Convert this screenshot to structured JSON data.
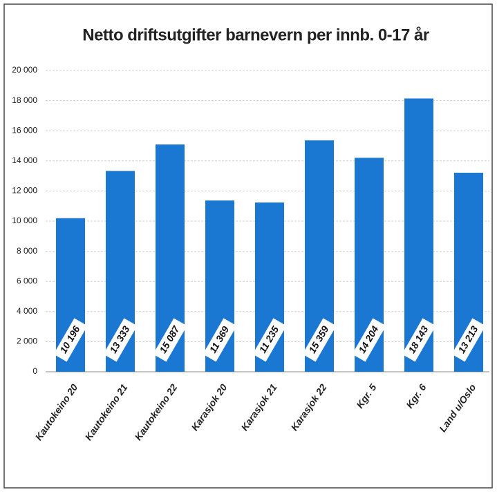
{
  "chart_data": {
    "type": "bar",
    "title": "Netto driftsutgifter barnevern per innb. 0-17 år",
    "categories": [
      "Kautokeino 20",
      "Kautokeino 21",
      "Kautokeino 22",
      "Karasjok 20",
      "Karasjok 21",
      "Karasjok 22",
      "Kgr. 5",
      "Kgr. 6",
      "Land u/Oslo"
    ],
    "values": [
      10196,
      13333,
      15087,
      11369,
      11235,
      15359,
      14204,
      18143,
      13213
    ],
    "value_labels": [
      "10 196",
      "13 333",
      "15 087",
      "11 369",
      "11 235",
      "15 359",
      "14 204",
      "18 143",
      "13 213"
    ],
    "color": "#1b78d2",
    "ylim": [
      0,
      20000
    ],
    "yticks": [
      0,
      {
        "value": 2000,
        "label": "2 000"
      },
      {
        "value": 4000,
        "label": "4 000"
      },
      {
        "value": 6000,
        "label": "6 000"
      },
      {
        "value": 8000,
        "label": "8 000"
      },
      {
        "value": 10000,
        "label": "10 000"
      },
      {
        "value": 12000,
        "label": "12 000"
      },
      {
        "value": 14000,
        "label": "14 000"
      },
      {
        "value": 16000,
        "label": "16 000"
      },
      {
        "value": 18000,
        "label": "18 000"
      },
      {
        "value": 20000,
        "label": "20 000"
      }
    ],
    "grid": true
  }
}
